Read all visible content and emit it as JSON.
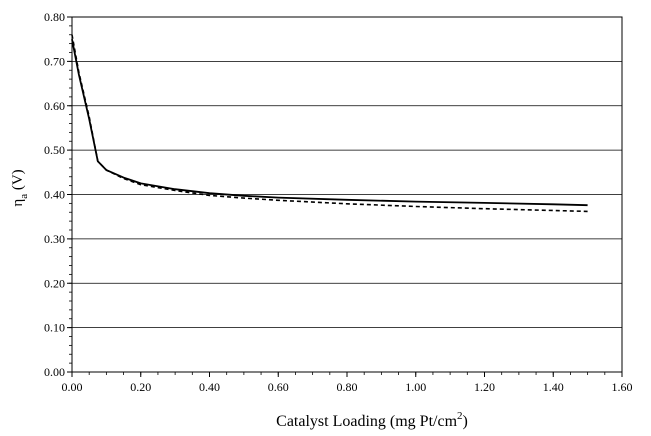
{
  "chart_data": {
    "type": "line",
    "title": "",
    "xlabel": {
      "prefix": "Catalyst Loading (mg Pt/cm",
      "superscript": "2",
      "suffix": ")"
    },
    "ylabel": {
      "symbol": "η",
      "subscript": "a",
      "suffix": " (V)"
    },
    "xlim": [
      0.0,
      1.6
    ],
    "ylim": [
      0.0,
      0.8
    ],
    "xticks": [
      "0.00",
      "0.20",
      "0.40",
      "0.60",
      "0.80",
      "1.00",
      "1.20",
      "1.40",
      "1.60"
    ],
    "yticks": [
      "0.00",
      "0.10",
      "0.20",
      "0.30",
      "0.40",
      "0.50",
      "0.60",
      "0.70",
      "0.80"
    ],
    "grid": "horizontal",
    "legend": "none",
    "series": [
      {
        "style": "solid",
        "color": "#000000",
        "x": [
          0.0,
          0.02,
          0.05,
          0.075,
          0.1,
          0.15,
          0.2,
          0.3,
          0.4,
          0.5,
          0.6,
          0.8,
          1.0,
          1.2,
          1.4,
          1.5
        ],
        "y": [
          0.75,
          0.67,
          0.57,
          0.475,
          0.455,
          0.438,
          0.425,
          0.412,
          0.403,
          0.397,
          0.393,
          0.388,
          0.384,
          0.381,
          0.378,
          0.376
        ]
      },
      {
        "style": "dashed",
        "color": "#000000",
        "x": [
          0.0,
          0.02,
          0.05,
          0.075,
          0.1,
          0.15,
          0.2,
          0.3,
          0.4,
          0.5,
          0.6,
          0.8,
          1.0,
          1.2,
          1.4,
          1.5
        ],
        "y": [
          0.76,
          0.675,
          0.575,
          0.475,
          0.455,
          0.436,
          0.422,
          0.409,
          0.398,
          0.392,
          0.387,
          0.379,
          0.373,
          0.368,
          0.364,
          0.362
        ]
      }
    ]
  }
}
